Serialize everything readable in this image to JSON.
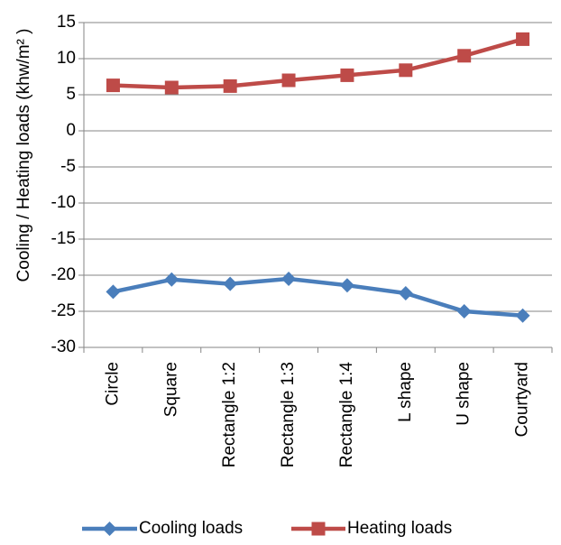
{
  "chart_data": {
    "type": "line",
    "title": "",
    "xlabel": "",
    "ylabel": "Cooling / Heating loads (khw/m² )",
    "categories": [
      "Circle",
      "Square",
      "Rectangle 1:2",
      "Rectangle 1:3",
      "Rectangle 1:4",
      "L shape",
      "U shape",
      "Courtyard"
    ],
    "ylim": [
      -30,
      15
    ],
    "yticks": [
      15,
      10,
      5,
      0,
      -5,
      -10,
      -15,
      -20,
      -25,
      -30
    ],
    "grid": true,
    "legend_position": "bottom",
    "series": [
      {
        "name": "Cooling loads",
        "color": "#4a7ebb",
        "marker": "diamond",
        "values": [
          -22.3,
          -20.6,
          -21.2,
          -20.5,
          -21.4,
          -22.5,
          -25.0,
          -25.6
        ]
      },
      {
        "name": "Heating loads",
        "color": "#be4b48",
        "marker": "square",
        "values": [
          6.3,
          6.0,
          6.2,
          7.0,
          7.7,
          8.4,
          10.4,
          12.7
        ]
      }
    ]
  }
}
